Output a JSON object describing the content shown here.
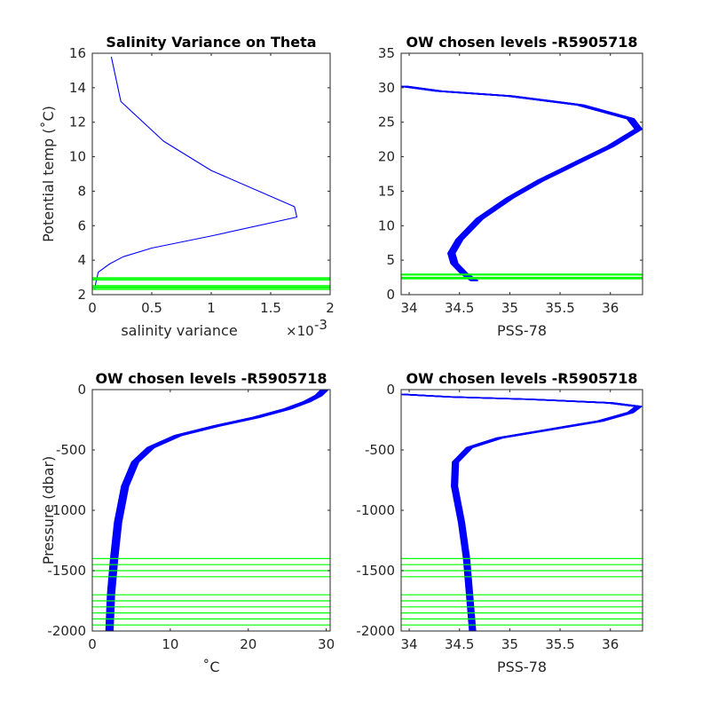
{
  "chart_data": [
    {
      "type": "line",
      "title": "Salinity Variance on Theta",
      "xlabel": "salinity variance",
      "x_exponent_label": "×10",
      "x_exponent_power": "-3",
      "ylabel": "Potential temp (˚C)",
      "xlim": [
        0,
        0.002
      ],
      "ylim": [
        2,
        16
      ],
      "xticks": [
        0,
        0.0005,
        0.001,
        0.0015,
        0.002
      ],
      "xtick_labels": [
        "0",
        "0.5",
        "1",
        "1.5",
        "2"
      ],
      "yticks": [
        2,
        4,
        6,
        8,
        10,
        12,
        14,
        16
      ],
      "ytick_labels": [
        "2",
        "4",
        "6",
        "8",
        "10",
        "12",
        "14",
        "16"
      ],
      "series": [
        {
          "color": "#0000ff",
          "points": [
            [
              0.00016,
              15.8
            ],
            [
              0.00024,
              13.2
            ],
            [
              0.0006,
              10.9
            ],
            [
              0.001,
              9.2
            ],
            [
              0.0017,
              7.1
            ],
            [
              0.00172,
              6.5
            ],
            [
              0.001,
              5.4
            ],
            [
              0.0005,
              4.7
            ],
            [
              0.00026,
              4.2
            ],
            [
              0.00015,
              3.8
            ],
            [
              5e-05,
              3.3
            ],
            [
              3e-05,
              2.7
            ],
            [
              2e-05,
              2.3
            ]
          ]
        }
      ],
      "hlines": {
        "color": "#00ff00",
        "values": [
          2.3,
          2.38,
          2.45,
          2.52,
          2.85,
          2.92,
          2.98
        ]
      }
    },
    {
      "type": "line",
      "title": "OW chosen levels -R5905718",
      "xlabel": "PSS-78",
      "ylabel": "",
      "xlim": [
        33.92,
        36.32
      ],
      "ylim": [
        0,
        35
      ],
      "xticks": [
        34,
        34.5,
        35,
        35.5,
        36
      ],
      "xtick_labels": [
        "34",
        "34.5",
        "35",
        "35.5",
        "36"
      ],
      "yticks": [
        0,
        5,
        10,
        15,
        20,
        25,
        30,
        35
      ],
      "ytick_labels": [
        "0",
        "5",
        "10",
        "15",
        "20",
        "25",
        "30",
        "35"
      ],
      "series": [
        {
          "color": "#0000ff",
          "band_width": 0.07,
          "profiles": 12,
          "points": [
            [
              34.65,
              2.0
            ],
            [
              34.55,
              3
            ],
            [
              34.45,
              4.5
            ],
            [
              34.42,
              6
            ],
            [
              34.5,
              8
            ],
            [
              34.7,
              11
            ],
            [
              35.0,
              14
            ],
            [
              35.3,
              16.5
            ],
            [
              35.65,
              19
            ],
            [
              36.0,
              21.5
            ],
            [
              36.28,
              24
            ],
            [
              36.2,
              25.5
            ],
            [
              35.7,
              27.5
            ],
            [
              35.0,
              28.8
            ],
            [
              34.3,
              29.5
            ],
            [
              33.95,
              30.2
            ]
          ]
        }
      ],
      "hlines": {
        "color": "#00ff00",
        "values": [
          2.3,
          2.38,
          2.45,
          2.52,
          2.85,
          2.92,
          2.98
        ]
      }
    },
    {
      "type": "line",
      "title": "OW chosen levels -R5905718",
      "xlabel": "˚C",
      "ylabel": "Pressure (dbar)",
      "xlim": [
        0,
        30.5
      ],
      "ylim": [
        -2000,
        0
      ],
      "xticks": [
        0,
        10,
        20,
        30
      ],
      "xtick_labels": [
        "0",
        "10",
        "20",
        "30"
      ],
      "yticks": [
        0,
        -500,
        -1000,
        -1500,
        -2000
      ],
      "ytick_labels": [
        "0",
        "-500",
        "-1000",
        "-1500",
        "-2000"
      ],
      "series": [
        {
          "color": "#0000ff",
          "band_width": 0.9,
          "profiles": 12,
          "points": [
            [
              2.2,
              -2000
            ],
            [
              2.4,
              -1700
            ],
            [
              2.8,
              -1400
            ],
            [
              3.3,
              -1100
            ],
            [
              4.2,
              -800
            ],
            [
              5.5,
              -600
            ],
            [
              7.5,
              -480
            ],
            [
              11,
              -380
            ],
            [
              16,
              -300
            ],
            [
              21,
              -230
            ],
            [
              25,
              -160
            ],
            [
              27.5,
              -100
            ],
            [
              29,
              -50
            ],
            [
              29.8,
              0
            ]
          ]
        }
      ],
      "hlines": {
        "color": "#00ff00",
        "values": [
          -1400,
          -1450,
          -1500,
          -1550,
          -1700,
          -1750,
          -1800,
          -1850,
          -1900,
          -1950
        ]
      }
    },
    {
      "type": "line",
      "title": "OW chosen levels -R5905718",
      "xlabel": "PSS-78",
      "ylabel": "",
      "xlim": [
        33.92,
        36.32
      ],
      "ylim": [
        -2000,
        0
      ],
      "xticks": [
        34,
        34.5,
        35,
        35.5,
        36
      ],
      "xtick_labels": [
        "34",
        "34.5",
        "35",
        "35.5",
        "36"
      ],
      "yticks": [
        0,
        -500,
        -1000,
        -1500,
        -2000
      ],
      "ytick_labels": [
        "0",
        "-500",
        "-1000",
        "-1500",
        "-2000"
      ],
      "series": [
        {
          "color": "#0000ff",
          "band_width": 0.06,
          "profiles": 12,
          "points": [
            [
              34.63,
              -2000
            ],
            [
              34.6,
              -1700
            ],
            [
              34.57,
              -1400
            ],
            [
              34.52,
              -1100
            ],
            [
              34.45,
              -800
            ],
            [
              34.46,
              -600
            ],
            [
              34.6,
              -480
            ],
            [
              34.9,
              -400
            ],
            [
              35.4,
              -330
            ],
            [
              35.9,
              -260
            ],
            [
              36.2,
              -190
            ],
            [
              36.28,
              -140
            ],
            [
              36.0,
              -110
            ],
            [
              35.2,
              -80
            ],
            [
              34.4,
              -60
            ],
            [
              33.95,
              -40
            ]
          ]
        }
      ],
      "hlines": {
        "color": "#00ff00",
        "values": [
          -1400,
          -1450,
          -1500,
          -1550,
          -1700,
          -1750,
          -1800,
          -1850,
          -1900,
          -1950
        ]
      }
    }
  ]
}
